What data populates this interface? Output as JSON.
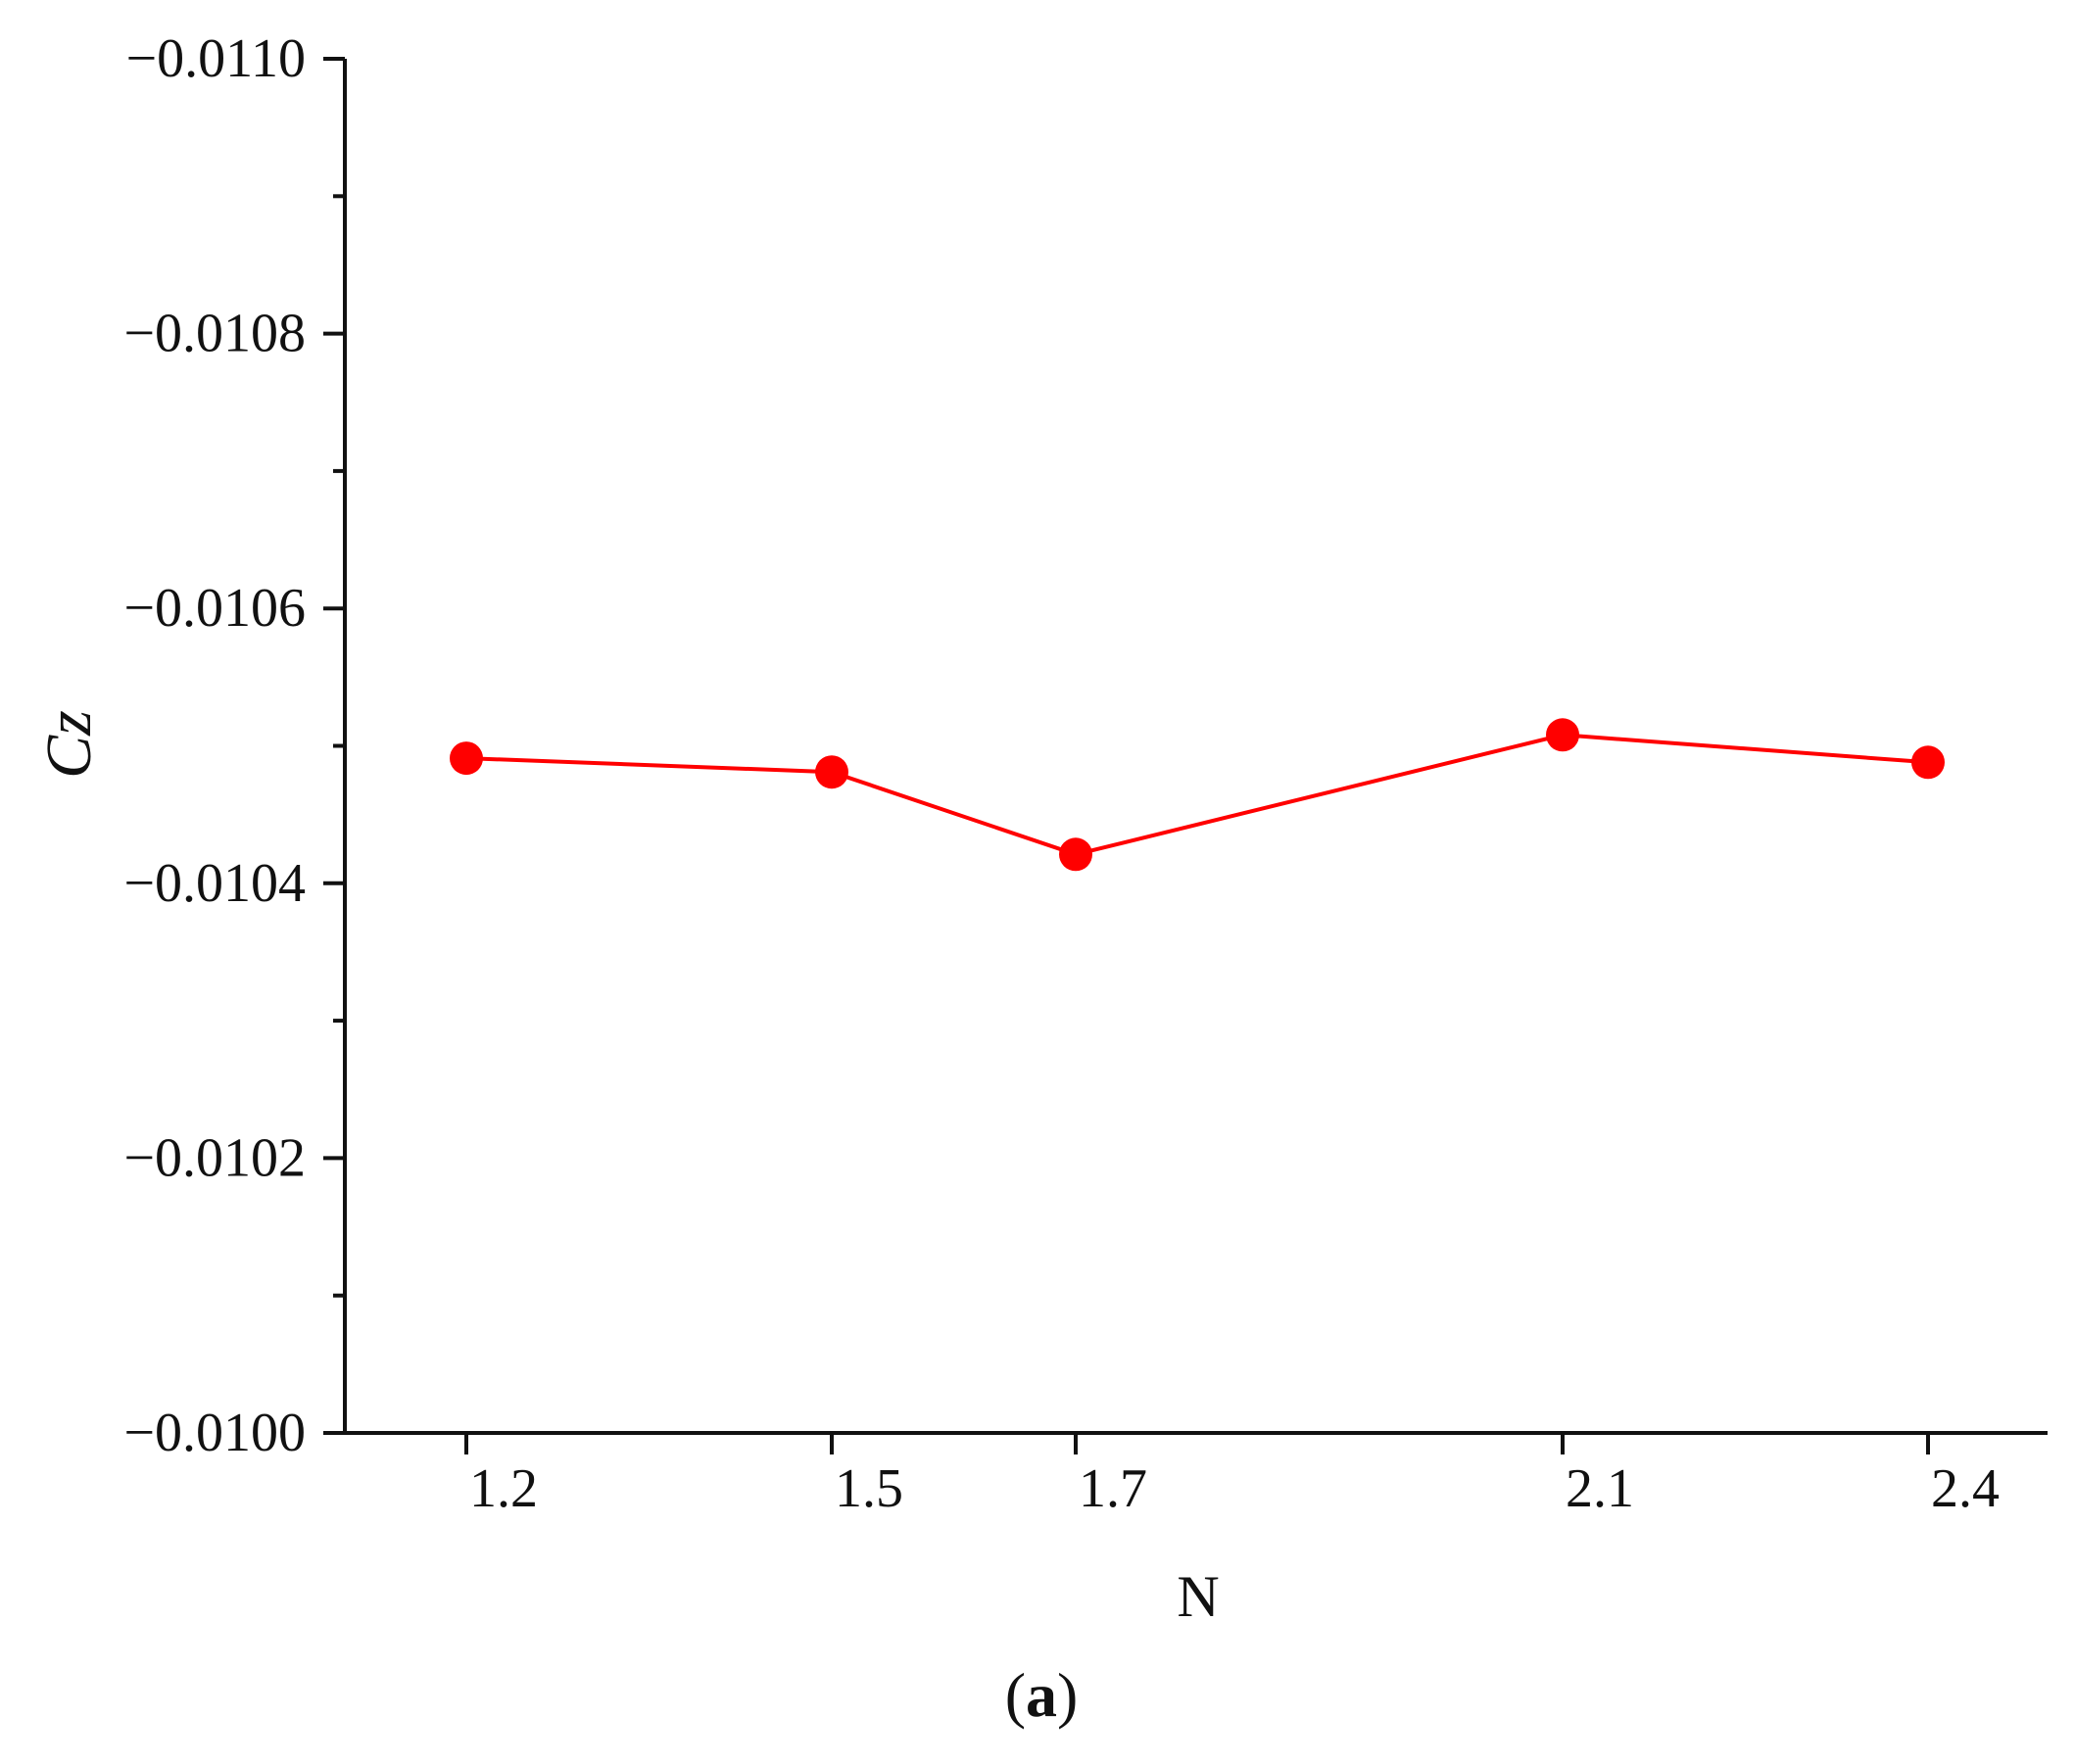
{
  "chart_data": {
    "type": "line",
    "x": [
      "1.2",
      "1.5",
      "1.7",
      "2.1",
      "2.4"
    ],
    "series": [
      {
        "values": [
          -0.010491,
          -0.010481,
          -0.010421,
          -0.010508,
          -0.010488
        ]
      }
    ],
    "xlabel": "N",
    "ylabel": {
      "main": "C",
      "sub": "z"
    },
    "ylim": [
      -0.01,
      -0.011
    ],
    "y_ticks": [
      "−0.0110",
      "−0.0108",
      "−0.0106",
      "−0.0104",
      "−0.0102",
      "−0.0100"
    ],
    "y_tick_values": [
      -0.011,
      -0.0108,
      -0.0106,
      -0.0104,
      -0.0102,
      -0.01
    ],
    "grid": false,
    "colors": {
      "series": "#ff0000",
      "axis": "#111111"
    }
  },
  "caption": {
    "open": "(",
    "letter": "a",
    "close": ")"
  }
}
